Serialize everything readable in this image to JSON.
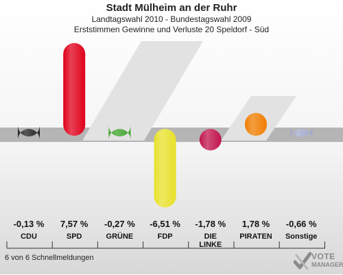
{
  "header": {
    "title": "Stadt Mülheim an der Ruhr",
    "subtitle": "Landtagswahl 2010 - Bundestagswahl 2009",
    "description": "Erststimmen Gewinne und Verluste 20 Speldorf - Süd"
  },
  "footer": {
    "status": "6 von 6 Schnellmeldungen"
  },
  "logo": {
    "line1": "VOTE",
    "line2": "MANAGER"
  },
  "chart_data": {
    "type": "bar",
    "title": "Stadt Mülheim an der Ruhr",
    "categories": [
      "CDU",
      "SPD",
      "GRÜNE",
      "FDP",
      "DIE LINKE",
      "PIRATEN",
      "Sonstige"
    ],
    "values": [
      -0.13,
      7.57,
      -0.27,
      -6.51,
      -1.78,
      1.78,
      -0.66
    ],
    "value_labels": [
      "-0,13 %",
      "7,57 %",
      "-0,27 %",
      "-6,51 %",
      "-1,78 %",
      "1,78 %",
      "-0,66 %"
    ],
    "label_lines": [
      [
        "CDU"
      ],
      [
        "SPD"
      ],
      [
        "GRÜNE"
      ],
      [
        "FDP"
      ],
      [
        "DIE",
        "LINKE"
      ],
      [
        "PIRATEN"
      ],
      [
        "Sonstige"
      ]
    ],
    "colors": [
      "#222222",
      "#e0001b",
      "#3fa32c",
      "#e8e02a",
      "#c0144c",
      "#f07d00",
      "#a0a8c8"
    ],
    "unit": "%",
    "grid": false,
    "legend": "none"
  }
}
